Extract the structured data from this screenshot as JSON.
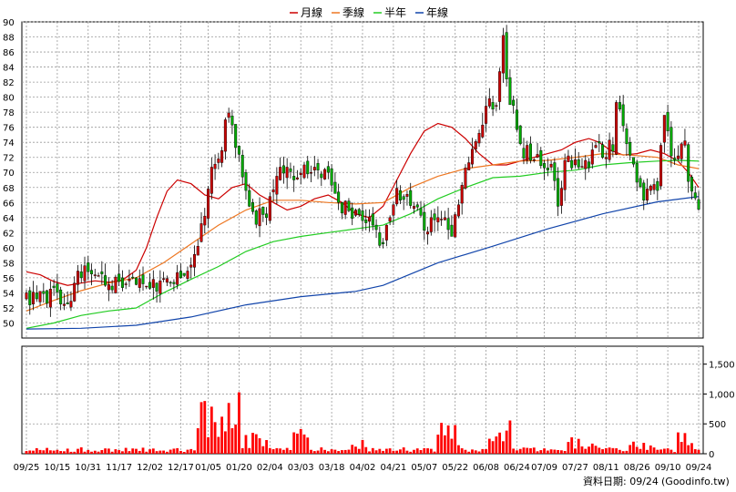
{
  "chart_data": {
    "type": "candlestick",
    "legend": {
      "placement": "top-center",
      "entries": [
        {
          "name": "月線",
          "color": "#cc0000"
        },
        {
          "name": "季線",
          "color": "#ee7722"
        },
        {
          "name": "半年",
          "color": "#22cc22"
        },
        {
          "name": "年線",
          "color": "#1144aa"
        }
      ]
    },
    "price_axis": {
      "min": 48,
      "max": 90,
      "ticks": [
        50,
        52,
        54,
        56,
        58,
        60,
        62,
        64,
        66,
        68,
        70,
        72,
        74,
        76,
        78,
        80,
        82,
        84,
        86,
        88,
        90
      ]
    },
    "volume_axis": {
      "min": 0,
      "max": 1800,
      "ticks": [
        0,
        500,
        1000,
        1500
      ],
      "tick_labels": [
        "0",
        "500",
        "1,000",
        "1,500"
      ]
    },
    "x_labels": [
      "09/25",
      "10/15",
      "10/31",
      "11/17",
      "12/02",
      "12/17",
      "01/05",
      "01/20",
      "02/04",
      "03/03",
      "03/18",
      "04/02",
      "04/21",
      "05/07",
      "05/22",
      "06/08",
      "06/24",
      "07/09",
      "07/27",
      "08/11",
      "08/26",
      "09/10",
      "09/24"
    ],
    "grid": true,
    "up_color": "#cc0000",
    "down_color": "#00aa00",
    "volume_color": "#ff0000",
    "ma_series": {
      "month": [
        [
          0,
          56.8
        ],
        [
          4,
          56.4
        ],
        [
          8,
          55.5
        ],
        [
          12,
          55
        ],
        [
          16,
          55.3
        ],
        [
          20,
          55.6
        ],
        [
          24,
          55.4
        ],
        [
          28,
          55.7
        ],
        [
          32,
          57
        ],
        [
          35,
          60
        ],
        [
          38,
          64
        ],
        [
          41,
          67.5
        ],
        [
          44,
          69
        ],
        [
          48,
          68.5
        ],
        [
          52,
          67
        ],
        [
          56,
          66.5
        ],
        [
          60,
          68
        ],
        [
          64,
          68.5
        ],
        [
          68,
          67
        ],
        [
          72,
          66
        ],
        [
          76,
          65
        ],
        [
          80,
          65.5
        ],
        [
          84,
          66.5
        ],
        [
          88,
          67
        ],
        [
          92,
          66
        ],
        [
          96,
          64.5
        ],
        [
          100,
          64
        ],
        [
          104,
          65.5
        ],
        [
          108,
          69
        ],
        [
          112,
          72.5
        ],
        [
          116,
          75.5
        ],
        [
          120,
          76.5
        ],
        [
          124,
          76
        ],
        [
          128,
          74.5
        ],
        [
          132,
          72.5
        ],
        [
          136,
          71
        ],
        [
          140,
          71
        ],
        [
          144,
          71.5
        ],
        [
          148,
          72
        ],
        [
          152,
          72.5
        ],
        [
          156,
          73
        ],
        [
          160,
          74
        ],
        [
          164,
          74.5
        ],
        [
          167,
          74
        ],
        [
          170,
          73
        ],
        [
          174,
          72.3
        ],
        [
          178,
          72.5
        ],
        [
          182,
          73
        ],
        [
          186,
          72.5
        ],
        [
          190,
          71.5
        ],
        [
          193,
          70
        ],
        [
          196,
          68
        ]
      ],
      "quarter": [
        [
          0,
          51.6
        ],
        [
          8,
          53
        ],
        [
          16,
          54.3
        ],
        [
          24,
          55.3
        ],
        [
          32,
          56
        ],
        [
          40,
          58
        ],
        [
          48,
          60.5
        ],
        [
          56,
          63
        ],
        [
          64,
          65
        ],
        [
          72,
          66.3
        ],
        [
          80,
          66.3
        ],
        [
          88,
          66
        ],
        [
          96,
          65.8
        ],
        [
          104,
          66
        ],
        [
          112,
          68
        ],
        [
          120,
          69.5
        ],
        [
          128,
          70.5
        ],
        [
          136,
          71
        ],
        [
          144,
          71.5
        ],
        [
          152,
          71.6
        ],
        [
          160,
          72
        ],
        [
          168,
          72.5
        ],
        [
          176,
          72.3
        ],
        [
          184,
          72
        ],
        [
          190,
          71
        ],
        [
          196,
          70.5
        ]
      ],
      "half_year": [
        [
          0,
          49.3
        ],
        [
          8,
          50
        ],
        [
          16,
          51
        ],
        [
          24,
          51.6
        ],
        [
          32,
          52
        ],
        [
          40,
          54
        ],
        [
          48,
          55.8
        ],
        [
          56,
          57.5
        ],
        [
          64,
          59.5
        ],
        [
          72,
          60.8
        ],
        [
          80,
          61.5
        ],
        [
          88,
          62
        ],
        [
          96,
          62.5
        ],
        [
          104,
          63
        ],
        [
          112,
          64.5
        ],
        [
          120,
          66.5
        ],
        [
          128,
          68
        ],
        [
          136,
          69.3
        ],
        [
          144,
          69.5
        ],
        [
          152,
          70
        ],
        [
          160,
          70.3
        ],
        [
          168,
          71
        ],
        [
          176,
          71.3
        ],
        [
          184,
          71.5
        ],
        [
          190,
          71.6
        ],
        [
          196,
          71.5
        ]
      ],
      "year": [
        [
          0,
          49.2
        ],
        [
          16,
          49.3
        ],
        [
          32,
          49.7
        ],
        [
          48,
          50.8
        ],
        [
          64,
          52.4
        ],
        [
          80,
          53.5
        ],
        [
          96,
          54.2
        ],
        [
          104,
          55
        ],
        [
          112,
          56.5
        ],
        [
          120,
          58
        ],
        [
          136,
          60.2
        ],
        [
          152,
          62.5
        ],
        [
          168,
          64.5
        ],
        [
          184,
          66.1
        ],
        [
          196,
          66.8
        ]
      ]
    },
    "candles": [],
    "volumes": []
  },
  "footer": {
    "label": "資料日期: 09/24",
    "source": "(Goodinfo.tw)"
  }
}
